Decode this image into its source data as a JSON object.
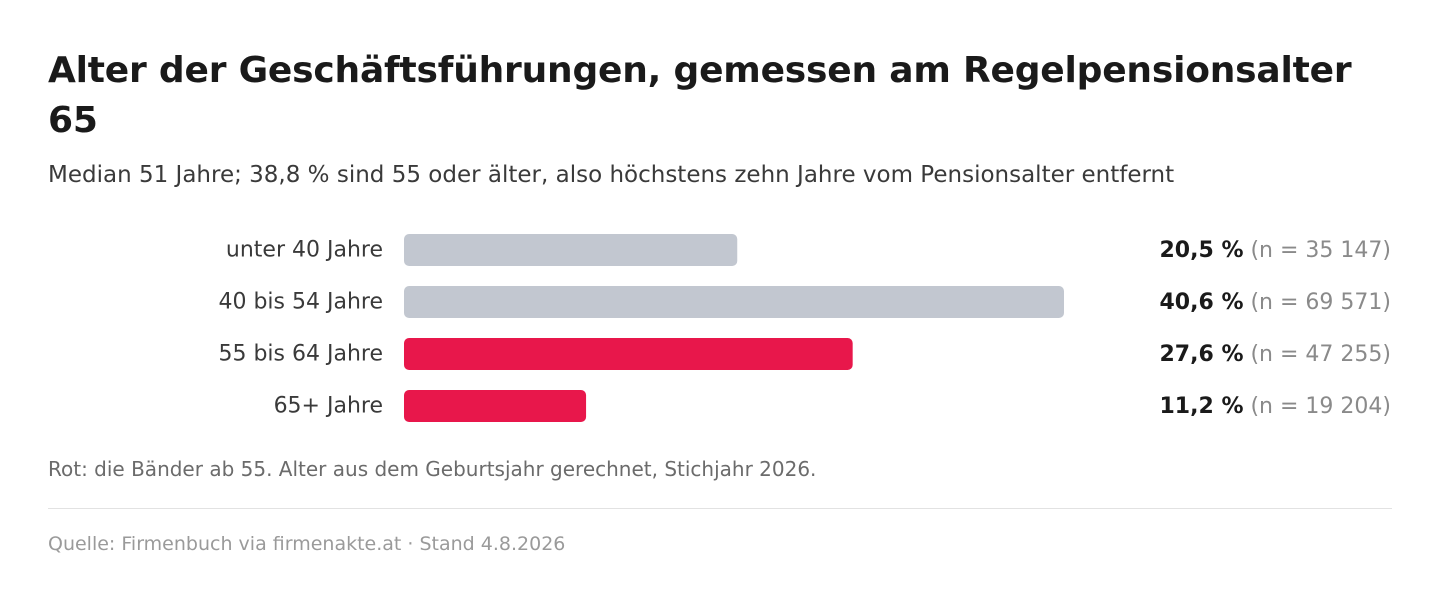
{
  "header": {
    "title": "Alter der Geschäftsführungen, gemessen am Regelpensionsalter 65",
    "subtitle": "Median 51 Jahre; 38,8 % sind 55 oder älter, also höchstens zehn Jahre vom Pensionsalter entfernt"
  },
  "chart_data": {
    "type": "bar",
    "orientation": "horizontal",
    "categories": [
      "unter 40 Jahre",
      "40 bis 54 Jahre",
      "55 bis 64 Jahre",
      "65+ Jahre"
    ],
    "values": [
      20.5,
      40.6,
      27.6,
      11.2
    ],
    "value_labels": [
      "20,5 %",
      "40,6 %",
      "27,6 %",
      "11,2 %"
    ],
    "counts": [
      "(n = 35 147)",
      "(n = 69 571)",
      "(n = 47 255)",
      "(n = 19 204)"
    ],
    "highlighted": [
      false,
      false,
      true,
      true
    ],
    "colors": {
      "default": "#c2c7d0",
      "highlight": "#e8174b"
    },
    "xlim": [
      0,
      40.6
    ],
    "grid": false,
    "legend": "none"
  },
  "footnote": "Rot: die Bänder ab 55. Alter aus dem Geburtsjahr gerechnet, Stichjahr 2026.",
  "source": "Quelle: Firmenbuch via firmenakte.at · Stand 4.8.2026"
}
